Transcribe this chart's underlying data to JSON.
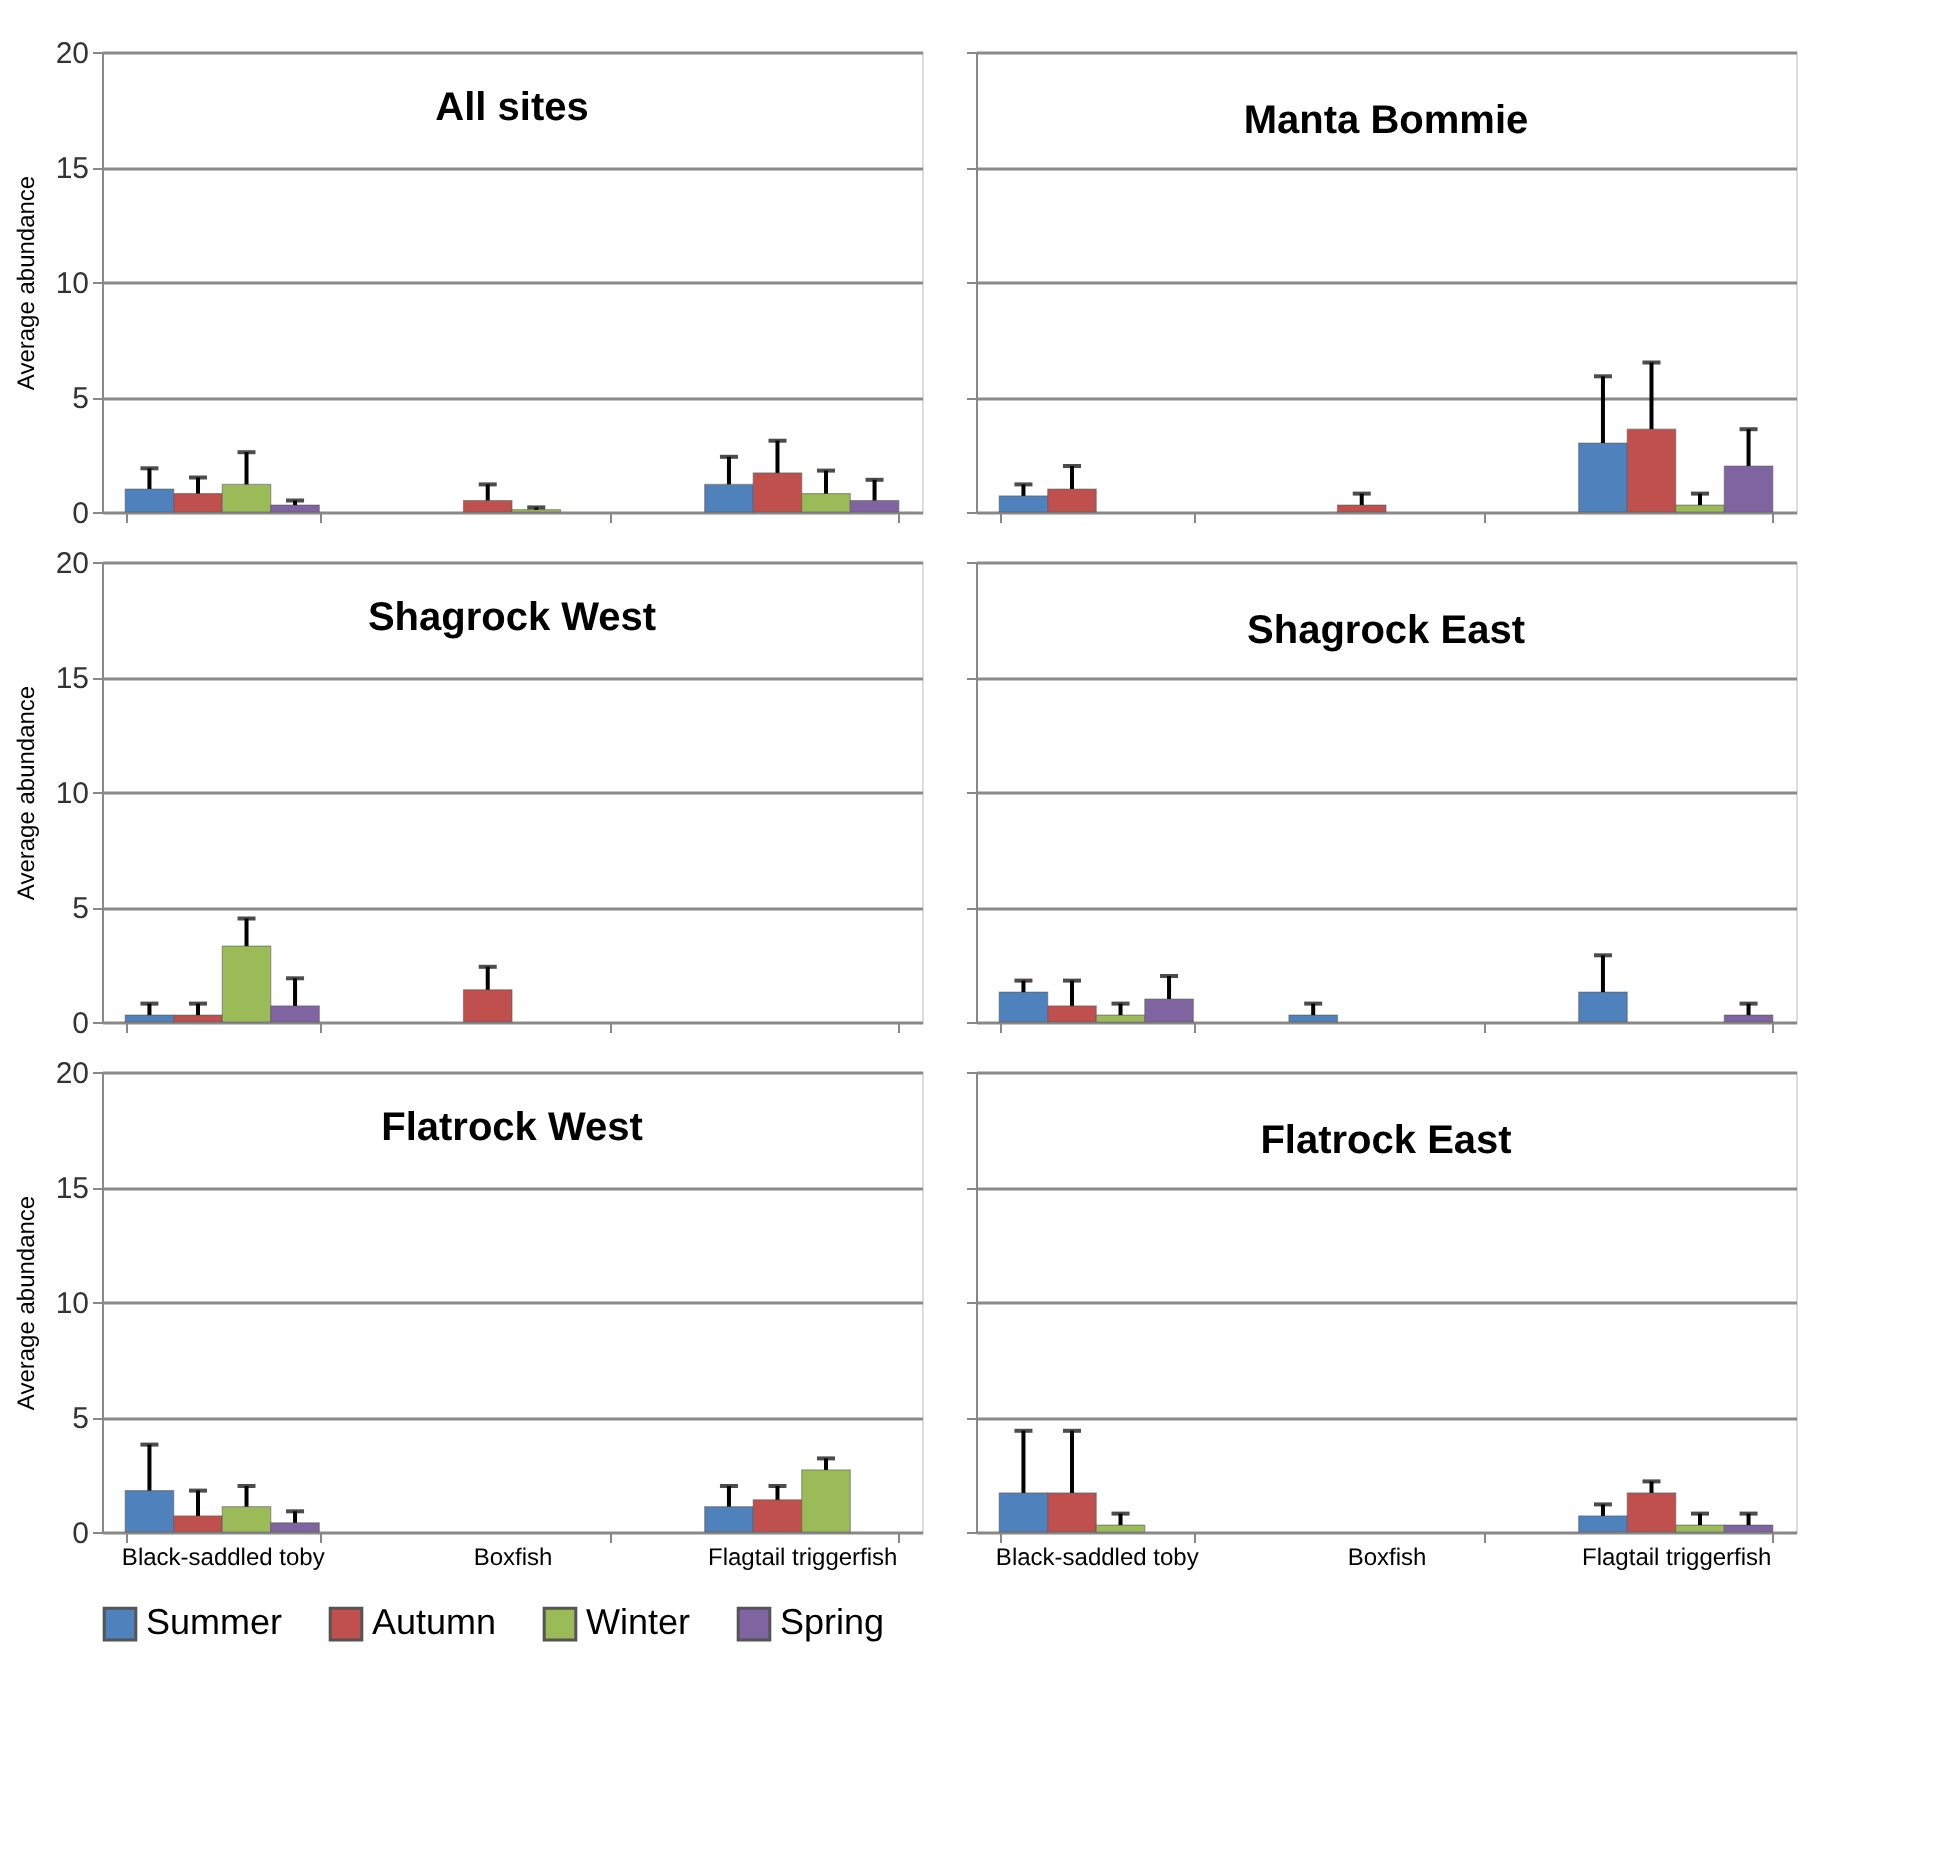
{
  "chart_data": [
    {
      "type": "bar",
      "title": "All sites",
      "ylabel": "Average abundance",
      "categories": [
        "Black-saddled toby",
        "Boxfish",
        "Flagtail triggerfish"
      ],
      "ylim": [
        0,
        20
      ],
      "yticks": [
        0,
        5,
        10,
        15,
        20
      ],
      "grid": "y",
      "legend": "bottom",
      "tick_labels": "y",
      "series": [
        {
          "name": "Summer",
          "color": "#4f81bd",
          "values": [
            1.0,
            null,
            1.2
          ],
          "errors": [
            [
              1.0,
              1.9
            ],
            null,
            [
              1.2,
              2.4
            ]
          ]
        },
        {
          "name": "Autumn",
          "color": "#c0504d",
          "values": [
            0.8,
            0.5,
            1.7
          ],
          "errors": [
            [
              0.8,
              1.5
            ],
            [
              0.5,
              1.2
            ],
            [
              1.7,
              3.1
            ]
          ]
        },
        {
          "name": "Winter",
          "color": "#9bbb59",
          "values": [
            1.2,
            0.1,
            0.8
          ],
          "errors": [
            [
              1.2,
              2.6
            ],
            [
              0.1,
              0.2
            ],
            [
              0.8,
              1.8
            ]
          ]
        },
        {
          "name": "Spring",
          "color": "#8064a2",
          "values": [
            0.3,
            null,
            0.5
          ],
          "errors": [
            [
              0.3,
              0.5
            ],
            null,
            [
              0.5,
              1.4
            ]
          ]
        }
      ]
    },
    {
      "type": "bar",
      "title": "Manta Bommie",
      "categories": [
        "Black-saddled toby",
        "Boxfish",
        "Flagtail triggerfish"
      ],
      "ylim": [
        0,
        20
      ],
      "yticks": [
        0,
        5,
        10,
        15,
        20
      ],
      "grid": "y",
      "legend": "bottom",
      "tick_labels": false,
      "series": [
        {
          "name": "Summer",
          "color": "#4f81bd",
          "values": [
            0.7,
            null,
            3.0
          ],
          "errors": [
            [
              0.7,
              1.2
            ],
            null,
            [
              3.0,
              5.9
            ]
          ]
        },
        {
          "name": "Autumn",
          "color": "#c0504d",
          "values": [
            1.0,
            0.3,
            3.6
          ],
          "errors": [
            [
              1.0,
              2.0
            ],
            [
              0.3,
              0.8
            ],
            [
              3.6,
              6.5
            ]
          ]
        },
        {
          "name": "Winter",
          "color": "#9bbb59",
          "values": [
            null,
            null,
            0.3
          ],
          "errors": [
            null,
            null,
            [
              0.3,
              0.8
            ]
          ]
        },
        {
          "name": "Spring",
          "color": "#8064a2",
          "values": [
            null,
            null,
            2.0
          ],
          "errors": [
            null,
            null,
            [
              2.0,
              3.6
            ]
          ]
        }
      ]
    },
    {
      "type": "bar",
      "title": "Shagrock West",
      "ylabel": "Average abundance",
      "categories": [
        "Black-saddled toby",
        "Boxfish",
        "Flagtail triggerfish"
      ],
      "ylim": [
        0,
        20
      ],
      "yticks": [
        0,
        5,
        10,
        15,
        20
      ],
      "grid": "y",
      "legend": "bottom",
      "tick_labels": "y",
      "series": [
        {
          "name": "Summer",
          "color": "#4f81bd",
          "values": [
            0.3,
            null,
            null
          ],
          "errors": [
            [
              0.3,
              0.8
            ],
            null,
            null
          ]
        },
        {
          "name": "Autumn",
          "color": "#c0504d",
          "values": [
            0.3,
            1.4,
            null
          ],
          "errors": [
            [
              0.3,
              0.8
            ],
            [
              1.4,
              2.4
            ],
            null
          ]
        },
        {
          "name": "Winter",
          "color": "#9bbb59",
          "values": [
            3.3,
            null,
            null
          ],
          "errors": [
            [
              3.3,
              4.5
            ],
            null,
            null
          ]
        },
        {
          "name": "Spring",
          "color": "#8064a2",
          "values": [
            0.7,
            null,
            null
          ],
          "errors": [
            [
              0.7,
              1.9
            ],
            null,
            null
          ]
        }
      ]
    },
    {
      "type": "bar",
      "title": "Shagrock East",
      "categories": [
        "Black-saddled toby",
        "Boxfish",
        "Flagtail triggerfish"
      ],
      "ylim": [
        0,
        20
      ],
      "yticks": [
        0,
        5,
        10,
        15,
        20
      ],
      "grid": "y",
      "legend": "bottom",
      "tick_labels": false,
      "series": [
        {
          "name": "Summer",
          "color": "#4f81bd",
          "values": [
            1.3,
            0.3,
            1.3
          ],
          "errors": [
            [
              1.3,
              1.8
            ],
            [
              0.3,
              0.8
            ],
            [
              1.3,
              2.9
            ]
          ]
        },
        {
          "name": "Autumn",
          "color": "#c0504d",
          "values": [
            0.7,
            null,
            null
          ],
          "errors": [
            [
              0.7,
              1.8
            ],
            null,
            null
          ]
        },
        {
          "name": "Winter",
          "color": "#9bbb59",
          "values": [
            0.3,
            null,
            null
          ],
          "errors": [
            [
              0.3,
              0.8
            ],
            null,
            null
          ]
        },
        {
          "name": "Spring",
          "color": "#8064a2",
          "values": [
            1.0,
            null,
            0.3
          ],
          "errors": [
            [
              1.0,
              2.0
            ],
            null,
            [
              0.3,
              0.8
            ]
          ]
        }
      ]
    },
    {
      "type": "bar",
      "title": "Flatrock West",
      "ylabel": "Average abundance",
      "categories": [
        "Black-saddled toby",
        "Boxfish",
        "Flagtail triggerfish"
      ],
      "ylim": [
        0,
        20
      ],
      "yticks": [
        0,
        5,
        10,
        15,
        20
      ],
      "grid": "y",
      "legend": "bottom",
      "series": [
        {
          "name": "Summer",
          "color": "#4f81bd",
          "values": [
            1.8,
            null,
            1.1
          ],
          "errors": [
            [
              1.8,
              3.8
            ],
            null,
            [
              1.1,
              2.0
            ]
          ]
        },
        {
          "name": "Autumn",
          "color": "#c0504d",
          "values": [
            0.7,
            null,
            1.4
          ],
          "errors": [
            [
              0.7,
              1.8
            ],
            null,
            [
              1.4,
              2.0
            ]
          ]
        },
        {
          "name": "Winter",
          "color": "#9bbb59",
          "values": [
            1.1,
            null,
            2.7
          ],
          "errors": [
            [
              1.1,
              2.0
            ],
            null,
            [
              2.7,
              3.2
            ]
          ]
        },
        {
          "name": "Spring",
          "color": "#8064a2",
          "values": [
            0.4,
            null,
            null
          ],
          "errors": [
            [
              0.4,
              0.9
            ],
            null,
            null
          ]
        }
      ]
    },
    {
      "type": "bar",
      "title": "Flatrock East",
      "categories": [
        "Black-saddled toby",
        "Boxfish",
        "Flagtail triggerfish"
      ],
      "ylim": [
        0,
        20
      ],
      "yticks": [
        0,
        5,
        10,
        15,
        20
      ],
      "grid": "y",
      "legend": "bottom",
      "tick_labels": "x",
      "series": [
        {
          "name": "Summer",
          "color": "#4f81bd",
          "values": [
            1.7,
            null,
            0.7
          ],
          "errors": [
            [
              1.7,
              4.4
            ],
            null,
            [
              0.7,
              1.2
            ]
          ]
        },
        {
          "name": "Autumn",
          "color": "#c0504d",
          "values": [
            1.7,
            null,
            1.7
          ],
          "errors": [
            [
              1.7,
              4.4
            ],
            null,
            [
              1.7,
              2.2
            ]
          ]
        },
        {
          "name": "Winter",
          "color": "#9bbb59",
          "values": [
            0.3,
            null,
            0.3
          ],
          "errors": [
            [
              0.3,
              0.8
            ],
            null,
            [
              0.3,
              0.8
            ]
          ]
        },
        {
          "name": "Spring",
          "color": "#8064a2",
          "values": [
            null,
            null,
            0.3
          ],
          "errors": [
            null,
            null,
            [
              0.3,
              0.8
            ]
          ]
        }
      ]
    }
  ]
}
